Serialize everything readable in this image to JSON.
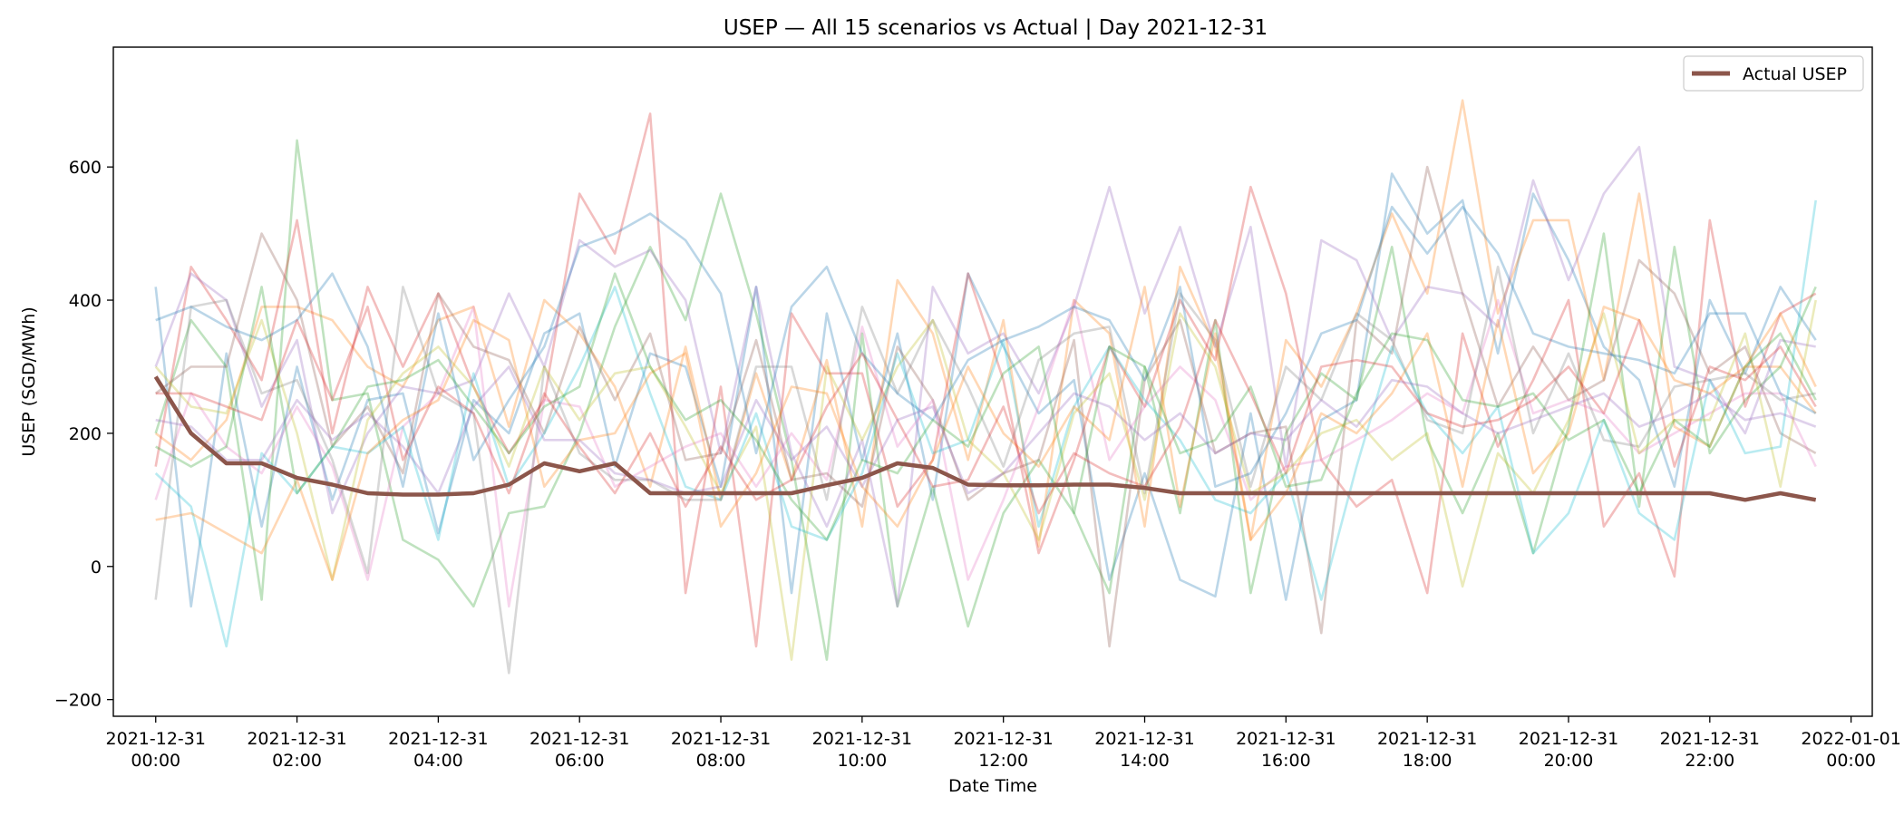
{
  "chart_data": {
    "type": "line",
    "title": "USEP — All 15 scenarios vs Actual | Day 2021-12-31",
    "xlabel": "Date Time",
    "ylabel": "USEP (SGD/MWh)",
    "xlim": [
      -0.6,
      24.3
    ],
    "ylim": [
      -225,
      780
    ],
    "grid": false,
    "legend_position": "top-right",
    "x_tick_values": [
      0,
      2,
      4,
      6,
      8,
      10,
      12,
      14,
      16,
      18,
      20,
      22,
      24
    ],
    "x_tick_labels": [
      [
        "2021-12-31",
        "00:00"
      ],
      [
        "2021-12-31",
        "02:00"
      ],
      [
        "2021-12-31",
        "04:00"
      ],
      [
        "2021-12-31",
        "06:00"
      ],
      [
        "2021-12-31",
        "08:00"
      ],
      [
        "2021-12-31",
        "10:00"
      ],
      [
        "2021-12-31",
        "12:00"
      ],
      [
        "2021-12-31",
        "14:00"
      ],
      [
        "2021-12-31",
        "16:00"
      ],
      [
        "2021-12-31",
        "18:00"
      ],
      [
        "2021-12-31",
        "20:00"
      ],
      [
        "2021-12-31",
        "22:00"
      ],
      [
        "2022-01-01",
        "00:00"
      ]
    ],
    "y_tick_values": [
      -200,
      0,
      200,
      400,
      600
    ],
    "y_tick_labels": [
      "−200",
      "0",
      "200",
      "400",
      "600"
    ],
    "x": [
      0,
      0.5,
      1,
      1.5,
      2,
      2.5,
      3,
      3.5,
      4,
      4.5,
      5,
      5.5,
      6,
      6.5,
      7,
      7.5,
      8,
      8.5,
      9,
      9.5,
      10,
      10.5,
      11,
      11.5,
      12,
      12.5,
      13,
      13.5,
      14,
      14.5,
      15,
      15.5,
      16,
      16.5,
      17,
      17.5,
      18,
      18.5,
      19,
      19.5,
      20,
      20.5,
      21,
      21.5,
      22,
      22.5,
      23,
      23.5
    ],
    "scenarios": [
      {
        "color": "#1f77b4",
        "values": [
          420,
          -60,
          320,
          60,
          300,
          100,
          250,
          260,
          50,
          250,
          200,
          350,
          380,
          150,
          320,
          300,
          120,
          420,
          -40,
          380,
          160,
          350,
          100,
          440,
          330,
          230,
          280,
          -20,
          140,
          -20,
          -45,
          230,
          -50,
          220,
          250,
          590,
          500,
          550,
          320,
          560,
          460,
          330,
          280,
          120,
          400,
          290,
          420,
          340
        ]
      },
      {
        "color": "#ff7f0e",
        "values": [
          200,
          160,
          220,
          390,
          390,
          370,
          300,
          270,
          370,
          390,
          210,
          400,
          350,
          270,
          120,
          330,
          100,
          290,
          130,
          310,
          60,
          430,
          350,
          160,
          370,
          30,
          400,
          350,
          60,
          450,
          330,
          40,
          340,
          270,
          380,
          530,
          410,
          700,
          380,
          520,
          520,
          280,
          560,
          210,
          180,
          300,
          300,
          230
        ]
      },
      {
        "color": "#2ca02c",
        "values": [
          200,
          370,
          300,
          -50,
          640,
          250,
          260,
          40,
          10,
          -60,
          80,
          90,
          200,
          360,
          480,
          370,
          560,
          380,
          160,
          -140,
          350,
          -60,
          120,
          -90,
          80,
          160,
          80,
          -40,
          300,
          80,
          370,
          -40,
          200,
          290,
          250,
          480,
          190,
          80,
          200,
          20,
          210,
          500,
          90,
          480,
          170,
          250,
          300,
          420
        ]
      },
      {
        "color": "#d62728",
        "values": [
          150,
          450,
          370,
          280,
          520,
          200,
          420,
          300,
          410,
          270,
          170,
          250,
          560,
          470,
          680,
          -40,
          270,
          -120,
          380,
          290,
          290,
          90,
          160,
          440,
          280,
          20,
          160,
          330,
          240,
          400,
          310,
          570,
          410,
          160,
          90,
          130,
          -40,
          350,
          180,
          280,
          400,
          60,
          140,
          -15,
          520,
          240,
          380,
          410
        ]
      },
      {
        "color": "#9467bd",
        "values": [
          300,
          440,
          400,
          240,
          340,
          80,
          200,
          270,
          260,
          280,
          410,
          300,
          490,
          450,
          475,
          400,
          170,
          420,
          170,
          60,
          190,
          -60,
          420,
          320,
          350,
          260,
          390,
          570,
          380,
          510,
          330,
          510,
          150,
          490,
          460,
          340,
          420,
          410,
          360,
          580,
          430,
          560,
          630,
          300,
          280,
          200,
          340,
          330
        ]
      },
      {
        "color": "#8c564b",
        "values": [
          260,
          300,
          300,
          500,
          400,
          180,
          240,
          140,
          410,
          330,
          310,
          200,
          360,
          250,
          350,
          160,
          170,
          340,
          130,
          140,
          90,
          330,
          250,
          100,
          140,
          160,
          340,
          -120,
          280,
          370,
          170,
          200,
          210,
          -100,
          370,
          320,
          600,
          410,
          240,
          330,
          250,
          280,
          460,
          410,
          290,
          330,
          200,
          170
        ]
      },
      {
        "color": "#e377c2",
        "values": [
          100,
          260,
          180,
          140,
          240,
          150,
          -20,
          210,
          260,
          390,
          -60,
          250,
          240,
          120,
          150,
          180,
          200,
          120,
          200,
          130,
          360,
          180,
          250,
          -20,
          100,
          240,
          400,
          160,
          240,
          300,
          250,
          100,
          150,
          160,
          190,
          220,
          260,
          230,
          400,
          230,
          250,
          230,
          170,
          200,
          230,
          260,
          260,
          150
        ]
      },
      {
        "color": "#7f7f7f",
        "values": [
          -50,
          390,
          400,
          260,
          280,
          160,
          -10,
          420,
          260,
          230,
          -160,
          300,
          170,
          130,
          130,
          100,
          100,
          300,
          300,
          100,
          390,
          260,
          370,
          270,
          150,
          310,
          350,
          360,
          110,
          410,
          340,
          120,
          300,
          250,
          380,
          340,
          220,
          200,
          450,
          200,
          320,
          190,
          180,
          270,
          280,
          290,
          250,
          260
        ]
      },
      {
        "color": "#bcbd22",
        "values": [
          300,
          240,
          230,
          370,
          200,
          -20,
          220,
          290,
          330,
          270,
          150,
          300,
          220,
          290,
          300,
          210,
          110,
          210,
          -140,
          300,
          190,
          300,
          370,
          190,
          140,
          40,
          230,
          290,
          100,
          380,
          300,
          110,
          140,
          200,
          220,
          160,
          200,
          -30,
          170,
          110,
          220,
          380,
          170,
          220,
          220,
          350,
          120,
          400
        ]
      },
      {
        "color": "#17becf",
        "values": [
          140,
          90,
          -120,
          170,
          110,
          180,
          170,
          210,
          40,
          290,
          120,
          200,
          300,
          420,
          260,
          120,
          100,
          230,
          60,
          40,
          140,
          320,
          170,
          190,
          340,
          60,
          240,
          330,
          250,
          190,
          100,
          80,
          140,
          -50,
          150,
          330,
          230,
          170,
          240,
          20,
          80,
          220,
          80,
          40,
          280,
          170,
          180,
          550
        ]
      },
      {
        "color": "#1f77b4",
        "values": [
          370,
          390,
          360,
          340,
          370,
          440,
          330,
          120,
          380,
          160,
          250,
          330,
          480,
          500,
          530,
          490,
          410,
          170,
          390,
          450,
          320,
          260,
          220,
          310,
          340,
          360,
          390,
          370,
          280,
          420,
          120,
          140,
          230,
          350,
          370,
          540,
          470,
          540,
          470,
          350,
          330,
          320,
          310,
          290,
          380,
          380,
          260,
          230
        ]
      },
      {
        "color": "#ff7f0e",
        "values": [
          70,
          80,
          50,
          20,
          130,
          -20,
          170,
          220,
          250,
          370,
          340,
          120,
          190,
          200,
          290,
          320,
          60,
          140,
          270,
          260,
          120,
          60,
          160,
          300,
          200,
          150,
          240,
          190,
          420,
          90,
          350,
          40,
          110,
          230,
          200,
          260,
          350,
          120,
          370,
          140,
          200,
          390,
          370,
          280,
          260,
          300,
          380,
          270
        ]
      },
      {
        "color": "#2ca02c",
        "values": [
          180,
          150,
          180,
          420,
          110,
          180,
          270,
          280,
          310,
          240,
          170,
          240,
          270,
          440,
          300,
          220,
          250,
          190,
          100,
          40,
          160,
          140,
          220,
          180,
          290,
          330,
          80,
          330,
          300,
          170,
          190,
          270,
          120,
          130,
          260,
          350,
          340,
          250,
          240,
          260,
          190,
          220,
          110,
          220,
          180,
          300,
          350,
          250
        ]
      },
      {
        "color": "#d62728",
        "values": [
          260,
          260,
          240,
          220,
          370,
          250,
          390,
          160,
          270,
          230,
          110,
          260,
          180,
          110,
          200,
          90,
          180,
          100,
          130,
          240,
          320,
          220,
          120,
          130,
          240,
          80,
          170,
          140,
          120,
          210,
          370,
          260,
          140,
          300,
          310,
          300,
          230,
          210,
          220,
          250,
          300,
          230,
          370,
          150,
          300,
          280,
          330,
          240
        ]
      },
      {
        "color": "#9467bd",
        "values": [
          220,
          210,
          160,
          160,
          250,
          190,
          230,
          180,
          110,
          240,
          300,
          190,
          190,
          140,
          130,
          110,
          120,
          250,
          160,
          210,
          120,
          220,
          240,
          110,
          140,
          200,
          260,
          240,
          190,
          230,
          170,
          200,
          190,
          250,
          210,
          280,
          270,
          230,
          200,
          220,
          240,
          260,
          210,
          230,
          260,
          220,
          230,
          210
        ]
      }
    ],
    "series": [
      {
        "name": "Actual USEP",
        "color": "#8c564b",
        "values": [
          285,
          200,
          155,
          155,
          133,
          123,
          110,
          108,
          108,
          110,
          123,
          155,
          143,
          155,
          110,
          110,
          110,
          110,
          110,
          122,
          133,
          155,
          148,
          123,
          122,
          122,
          123,
          123,
          118,
          110,
          110,
          110,
          110,
          110,
          110,
          110,
          110,
          110,
          110,
          110,
          110,
          110,
          110,
          110,
          110,
          100,
          110,
          100
        ]
      }
    ]
  }
}
